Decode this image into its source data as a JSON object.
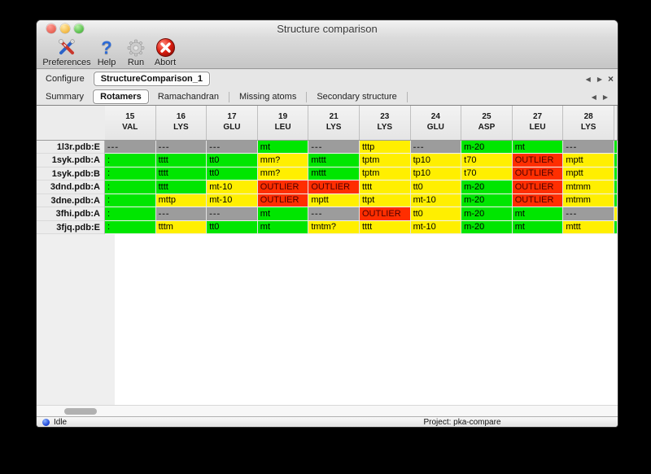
{
  "window": {
    "title": "Structure comparison"
  },
  "toolbar": {
    "items": [
      {
        "label": "Preferences",
        "icon": "tools-icon"
      },
      {
        "label": "Help",
        "icon": "question-icon"
      },
      {
        "label": "Run",
        "icon": "gear-icon"
      },
      {
        "label": "Abort",
        "icon": "stop-icon"
      }
    ]
  },
  "tabs_primary": {
    "configure_label": "Configure",
    "selected_tab": "StructureComparison_1",
    "nav": {
      "prev": "◀",
      "next": "▶",
      "close": "×"
    }
  },
  "tabs_secondary": {
    "tabs": [
      "Summary",
      "Rotamers",
      "Ramachandran",
      "Missing atoms",
      "Secondary structure"
    ],
    "selected": "Rotamers",
    "nav": {
      "prev": "◀",
      "next": "▶"
    }
  },
  "legend_colors": {
    "ok": "#00e600",
    "warn": "#ffef00",
    "outlier": "#ff2e00",
    "missing": "#9c9c9c"
  },
  "table": {
    "columns": [
      {
        "num": "15",
        "res": "VAL"
      },
      {
        "num": "16",
        "res": "LYS"
      },
      {
        "num": "17",
        "res": "GLU"
      },
      {
        "num": "19",
        "res": "LEU"
      },
      {
        "num": "21",
        "res": "LYS"
      },
      {
        "num": "23",
        "res": "LYS"
      },
      {
        "num": "24",
        "res": "GLU"
      },
      {
        "num": "25",
        "res": "ASP"
      },
      {
        "num": "27",
        "res": "LEU"
      },
      {
        "num": "28",
        "res": "LYS"
      }
    ],
    "rows": [
      {
        "label": "1l3r.pdb:E",
        "edge": "ok",
        "cells": [
          [
            "---",
            "missing"
          ],
          [
            "---",
            "missing"
          ],
          [
            "---",
            "missing"
          ],
          [
            "mt",
            "ok"
          ],
          [
            "---",
            "missing"
          ],
          [
            "tttp",
            "warn"
          ],
          [
            "---",
            "missing"
          ],
          [
            "m-20",
            "ok"
          ],
          [
            "mt",
            "ok"
          ],
          [
            "---",
            "missing"
          ]
        ]
      },
      {
        "label": "1syk.pdb:A",
        "edge": "ok",
        "cells": [
          [
            ":",
            "ok"
          ],
          [
            "tttt",
            "ok"
          ],
          [
            "tt0",
            "ok"
          ],
          [
            "mm?",
            "warn"
          ],
          [
            "mttt",
            "ok"
          ],
          [
            "tptm",
            "warn"
          ],
          [
            "tp10",
            "warn"
          ],
          [
            "t70",
            "warn"
          ],
          [
            "OUTLIER",
            "outlier"
          ],
          [
            "mptt",
            "warn"
          ]
        ]
      },
      {
        "label": "1syk.pdb:B",
        "edge": "ok",
        "cells": [
          [
            ":",
            "ok"
          ],
          [
            "tttt",
            "ok"
          ],
          [
            "tt0",
            "ok"
          ],
          [
            "mm?",
            "warn"
          ],
          [
            "mttt",
            "ok"
          ],
          [
            "tptm",
            "warn"
          ],
          [
            "tp10",
            "warn"
          ],
          [
            "t70",
            "warn"
          ],
          [
            "OUTLIER",
            "outlier"
          ],
          [
            "mptt",
            "warn"
          ]
        ]
      },
      {
        "label": "3dnd.pdb:A",
        "edge": "ok",
        "cells": [
          [
            ":",
            "ok"
          ],
          [
            "tttt",
            "ok"
          ],
          [
            "mt-10",
            "warn"
          ],
          [
            "OUTLIER",
            "outlier"
          ],
          [
            "OUTLIER",
            "outlier"
          ],
          [
            "tttt",
            "warn"
          ],
          [
            "tt0",
            "warn"
          ],
          [
            "m-20",
            "ok"
          ],
          [
            "OUTLIER",
            "outlier"
          ],
          [
            "mtmm",
            "warn"
          ]
        ]
      },
      {
        "label": "3dne.pdb:A",
        "edge": "ok",
        "cells": [
          [
            ":",
            "ok"
          ],
          [
            "mttp",
            "warn"
          ],
          [
            "mt-10",
            "warn"
          ],
          [
            "OUTLIER",
            "outlier"
          ],
          [
            "mptt",
            "warn"
          ],
          [
            "ttpt",
            "warn"
          ],
          [
            "mt-10",
            "warn"
          ],
          [
            "m-20",
            "ok"
          ],
          [
            "OUTLIER",
            "outlier"
          ],
          [
            "mtmm",
            "warn"
          ]
        ]
      },
      {
        "label": "3fhi.pdb:A",
        "edge": "warn",
        "cells": [
          [
            ":",
            "ok"
          ],
          [
            "---",
            "missing"
          ],
          [
            "---",
            "missing"
          ],
          [
            "mt",
            "ok"
          ],
          [
            "---",
            "missing"
          ],
          [
            "OUTLIER",
            "outlier"
          ],
          [
            "tt0",
            "warn"
          ],
          [
            "m-20",
            "ok"
          ],
          [
            "mt",
            "ok"
          ],
          [
            "---",
            "missing"
          ]
        ]
      },
      {
        "label": "3fjq.pdb:E",
        "edge": "ok",
        "cells": [
          [
            ":",
            "ok"
          ],
          [
            "tttm",
            "warn"
          ],
          [
            "tt0",
            "ok"
          ],
          [
            "mt",
            "ok"
          ],
          [
            "tmtm?",
            "warn"
          ],
          [
            "tttt",
            "warn"
          ],
          [
            "mt-10",
            "warn"
          ],
          [
            "m-20",
            "ok"
          ],
          [
            "mt",
            "ok"
          ],
          [
            "mttt",
            "warn"
          ]
        ]
      }
    ]
  },
  "statusbar": {
    "status": "Idle",
    "project": "Project: pka-compare"
  }
}
